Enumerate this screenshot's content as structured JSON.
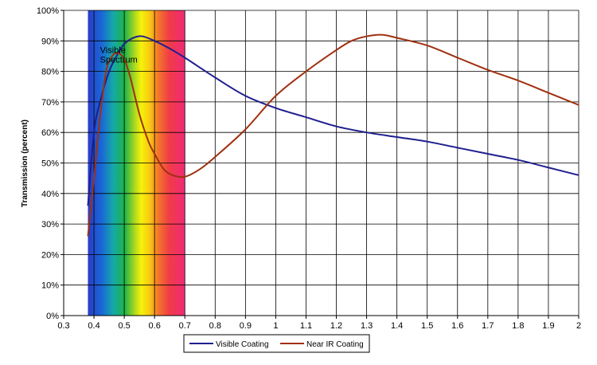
{
  "chart_data": {
    "type": "line",
    "title": "",
    "xlabel": "",
    "ylabel": "Transmission (percent)",
    "xlim": [
      0.3,
      2.0
    ],
    "ylim": [
      0,
      100
    ],
    "x_ticks": [
      "0.3",
      "0.4",
      "0.5",
      "0.6",
      "0.7",
      "0.8",
      "0.9",
      "1",
      "1.1",
      "1.2",
      "1.3",
      "1.4",
      "1.5",
      "1.6",
      "1.7",
      "1.8",
      "1.9",
      "2"
    ],
    "y_ticks": [
      "0%",
      "10%",
      "20%",
      "30%",
      "40%",
      "50%",
      "60%",
      "70%",
      "80%",
      "90%",
      "100%"
    ],
    "grid": true,
    "legend_position": "bottom",
    "annotation": {
      "lines": [
        "Visible",
        "Spectrum"
      ],
      "x": 0.42,
      "y": 86
    },
    "band": {
      "x_start": 0.38,
      "x_end": 0.7
    },
    "series": [
      {
        "name": "Visible Coating",
        "color": "#1f1f8f",
        "x": [
          0.38,
          0.4,
          0.42,
          0.45,
          0.48,
          0.5,
          0.53,
          0.56,
          0.6,
          0.65,
          0.7,
          0.8,
          0.9,
          1.0,
          1.1,
          1.2,
          1.3,
          1.4,
          1.5,
          1.6,
          1.7,
          1.8,
          1.9,
          2.0
        ],
        "y": [
          36,
          60,
          70,
          80,
          86,
          89,
          91,
          91.5,
          90,
          87.5,
          84.5,
          78,
          72,
          68,
          65,
          62,
          60,
          58.5,
          57,
          55,
          53,
          51,
          48.5,
          46
        ]
      },
      {
        "name": "Near IR Coating",
        "color": "#a03010",
        "x": [
          0.38,
          0.4,
          0.42,
          0.44,
          0.46,
          0.48,
          0.5,
          0.52,
          0.55,
          0.58,
          0.6,
          0.63,
          0.66,
          0.7,
          0.75,
          0.8,
          0.9,
          1.0,
          1.1,
          1.2,
          1.25,
          1.3,
          1.35,
          1.4,
          1.5,
          1.6,
          1.7,
          1.8,
          1.9,
          2.0
        ],
        "y": [
          26,
          45,
          65,
          80,
          85,
          86,
          84,
          78,
          66,
          57,
          53,
          48,
          46,
          45.5,
          48,
          52,
          61,
          72,
          80,
          87,
          90,
          91.5,
          92,
          91,
          88.5,
          84.5,
          80.5,
          77,
          73,
          69
        ]
      }
    ]
  }
}
